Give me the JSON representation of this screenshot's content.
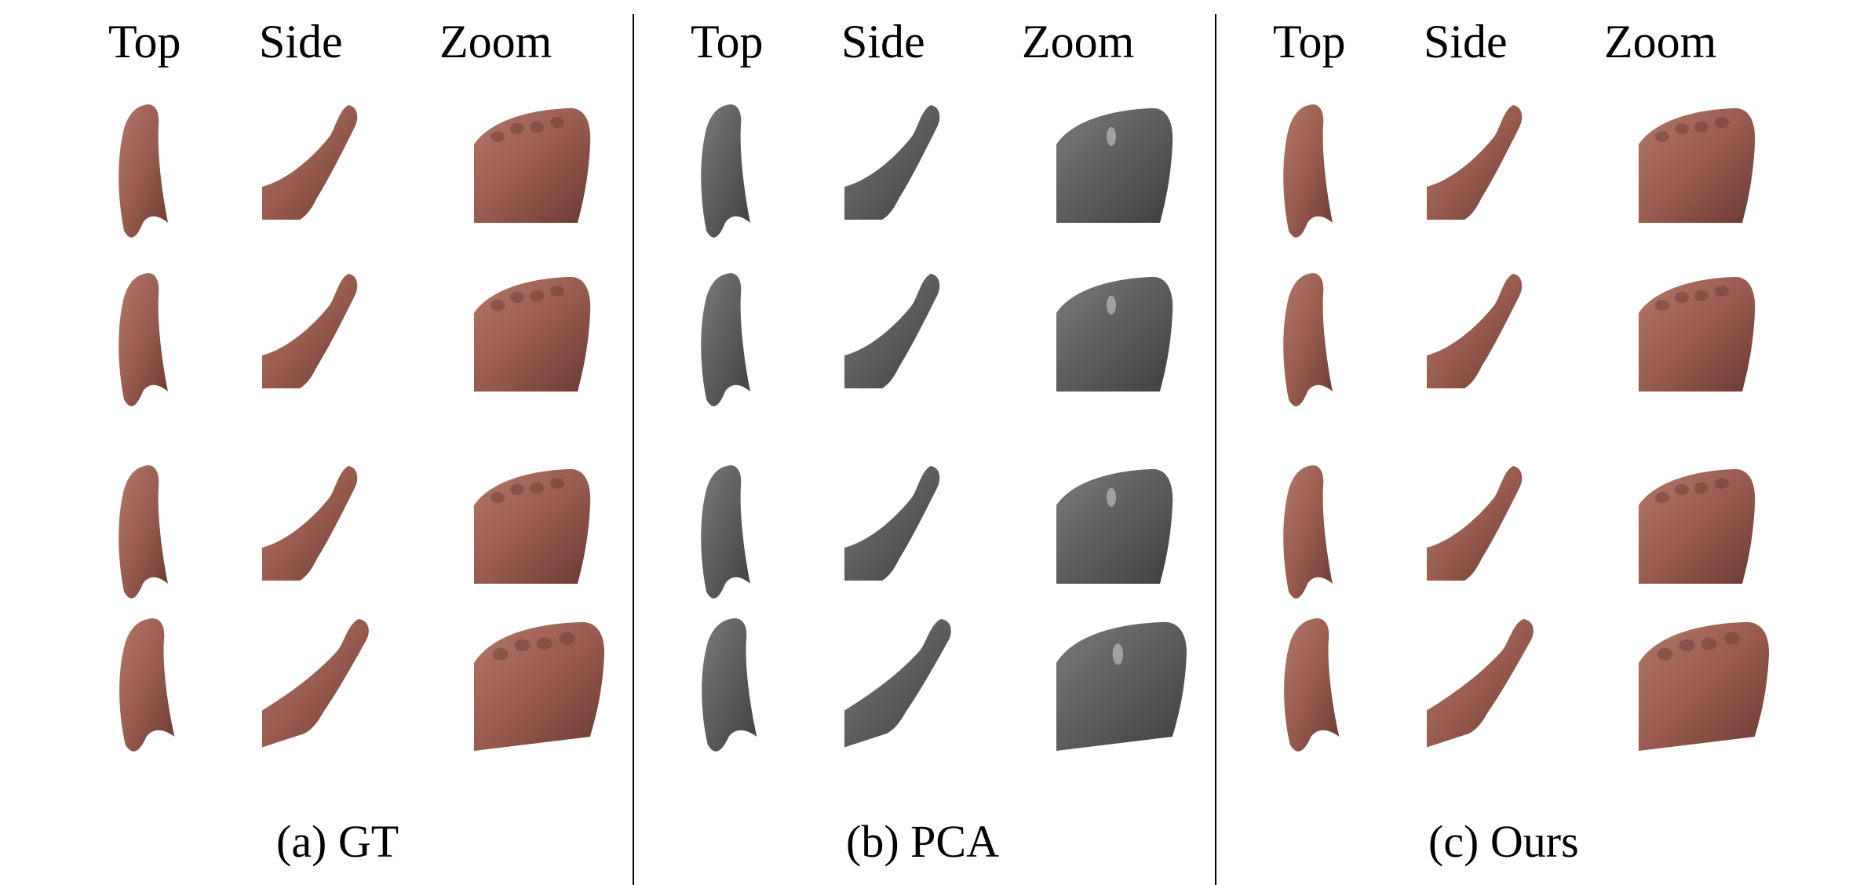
{
  "figure": {
    "columns": [
      "Top",
      "Side",
      "Zoom"
    ],
    "rows": 4,
    "panels": [
      {
        "id": "gt",
        "label": "(a) GT",
        "material": "skin"
      },
      {
        "id": "pca",
        "label": "(b) PCA",
        "material": "gray"
      },
      {
        "id": "ours",
        "label": "(c) Ours",
        "material": "skin"
      }
    ],
    "colors": {
      "skin_dark": "#6a3a32",
      "skin_mid": "#94594c",
      "skin_light": "#b3776a",
      "gray_dark": "#3f3f3f",
      "gray_mid": "#5a5a5a",
      "gray_light": "#7a7a7a",
      "divider": "#000000"
    }
  }
}
